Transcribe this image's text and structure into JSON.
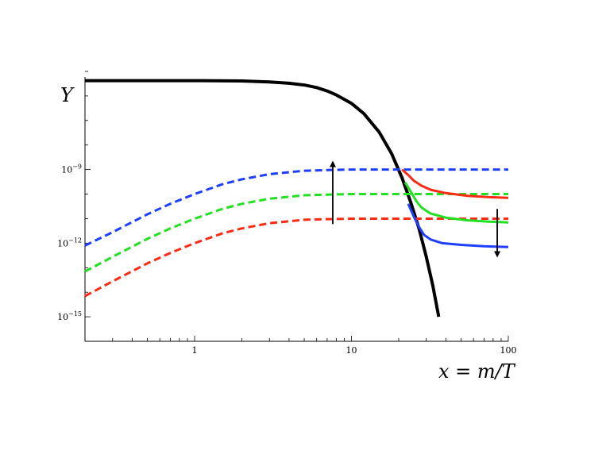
{
  "chart_data": {
    "type": "line",
    "title": "",
    "xlabel": "x = m/T",
    "ylabel": "Y",
    "x_scale": "log",
    "y_scale": "log",
    "xlim": [
      0.2,
      100
    ],
    "ylim": [
      1e-16,
      1e-05
    ],
    "grid": false,
    "legend": "none",
    "x_ticks": [
      {
        "value": 1,
        "label": "1"
      },
      {
        "value": 10,
        "label": "10"
      },
      {
        "value": 100,
        "label": "100"
      }
    ],
    "y_ticks": [
      {
        "value": 1e-09,
        "label": "10",
        "exp": "−9"
      },
      {
        "value": 1e-12,
        "label": "10",
        "exp": "−12"
      },
      {
        "value": 1e-15,
        "label": "10",
        "exp": "−15"
      }
    ],
    "series": [
      {
        "color": "#000000",
        "style": "solid",
        "x": [
          0.2,
          1,
          2,
          3,
          4,
          5,
          6,
          7,
          8,
          10,
          12,
          15,
          18,
          21,
          24,
          27,
          30,
          33,
          36
        ],
        "y": [
          4.2e-06,
          4.2e-06,
          4.1e-06,
          3.7e-06,
          3.3e-06,
          2.8e-06,
          2.2e-06,
          1.6e-06,
          1.1e-06,
          5e-07,
          1.9e-07,
          3.4e-08,
          4.6e-09,
          4.6e-10,
          4.2e-11,
          3.8e-12,
          2.8e-13,
          1.9e-14,
          1e-15
        ]
      },
      {
        "color": "#1f3fff",
        "style": "dashed",
        "x": [
          0.2,
          0.3,
          0.5,
          0.7,
          1,
          1.5,
          2,
          3,
          5,
          7,
          10,
          20,
          100
        ],
        "y": [
          8e-13,
          2.8e-12,
          1.5e-11,
          4e-11,
          1e-10,
          2.5e-10,
          4e-10,
          6.5e-10,
          9e-10,
          9.5e-10,
          1e-09,
          1e-09,
          1e-09
        ]
      },
      {
        "color": "#22e022",
        "style": "dashed",
        "x": [
          0.2,
          0.3,
          0.5,
          0.7,
          1,
          1.5,
          2,
          3,
          5,
          7,
          10,
          20,
          100
        ],
        "y": [
          7e-14,
          2.8e-13,
          1.5e-12,
          4e-12,
          1e-11,
          2.5e-11,
          4e-11,
          6.5e-11,
          9e-11,
          9.5e-11,
          1e-10,
          1e-10,
          1e-10
        ]
      },
      {
        "color": "#ff2a14",
        "style": "dashed",
        "x": [
          0.2,
          0.3,
          0.5,
          0.7,
          1,
          1.5,
          2,
          3,
          5,
          7,
          10,
          20,
          100
        ],
        "y": [
          7e-15,
          2.8e-14,
          1.5e-13,
          4e-13,
          1e-12,
          2.5e-12,
          4e-12,
          6.5e-12,
          9e-12,
          9.5e-12,
          1e-11,
          1e-11,
          1e-11
        ]
      },
      {
        "color": "#ff2a14",
        "style": "solid",
        "x": [
          21,
          23,
          25,
          28,
          32,
          40,
          55,
          75,
          100
        ],
        "y": [
          1e-09,
          6e-10,
          3.5e-10,
          2.2e-10,
          1.5e-10,
          1.1e-10,
          8.5e-11,
          7.5e-11,
          7e-11
        ]
      },
      {
        "color": "#22e022",
        "style": "solid",
        "x": [
          22,
          24,
          26,
          28,
          32,
          40,
          55,
          75,
          100
        ],
        "y": [
          3e-10,
          1.2e-10,
          5e-11,
          2.8e-11,
          1.6e-11,
          1.1e-11,
          8.5e-12,
          7.5e-12,
          7e-12
        ]
      },
      {
        "color": "#1f3fff",
        "style": "solid",
        "x": [
          23,
          25,
          27,
          29,
          32,
          38,
          50,
          70,
          100
        ],
        "y": [
          4e-11,
          1.2e-11,
          4.5e-12,
          2.2e-12,
          1.4e-12,
          1e-12,
          8.5e-13,
          7.5e-13,
          7e-13
        ]
      }
    ],
    "arrows": [
      {
        "x": 7.6,
        "y_from": 6e-12,
        "y_to": 1.7e-09
      },
      {
        "x": 85,
        "y_from": 2.5e-11,
        "y_to": 3.5e-13
      }
    ]
  }
}
